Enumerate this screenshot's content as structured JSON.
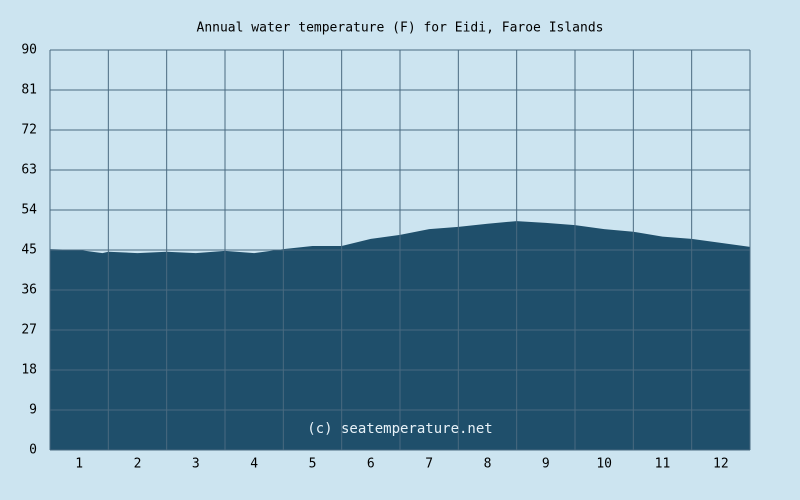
{
  "chart_data": {
    "type": "area",
    "title": "Annual water temperature (F) for Eidi, Faroe Islands",
    "annotation": "(c) seatemperature.net",
    "x": [
      0.5,
      1.0,
      1.4,
      1.5,
      2.0,
      2.5,
      3.0,
      3.5,
      4.0,
      4.5,
      5.0,
      5.5,
      6.0,
      6.5,
      7.0,
      7.5,
      8.0,
      8.5,
      9.0,
      9.5,
      10.0,
      10.5,
      11.0,
      11.5,
      12.0,
      12.5
    ],
    "values": [
      45.2,
      45.0,
      44.3,
      44.6,
      44.3,
      44.6,
      44.3,
      44.8,
      44.3,
      45.2,
      45.9,
      45.9,
      47.5,
      48.4,
      49.7,
      50.2,
      50.9,
      51.5,
      51.1,
      50.6,
      49.7,
      49.1,
      48.0,
      47.5,
      46.6,
      45.7
    ],
    "color": "#1f4f6b",
    "xlim": [
      0.5,
      12.5
    ],
    "xticks": [
      1,
      2,
      3,
      4,
      5,
      6,
      7,
      8,
      9,
      10,
      11,
      12
    ],
    "ylim": [
      0,
      90
    ],
    "yticks": [
      0,
      9,
      18,
      27,
      36,
      45,
      54,
      63,
      72,
      81,
      90
    ],
    "grid": true
  }
}
